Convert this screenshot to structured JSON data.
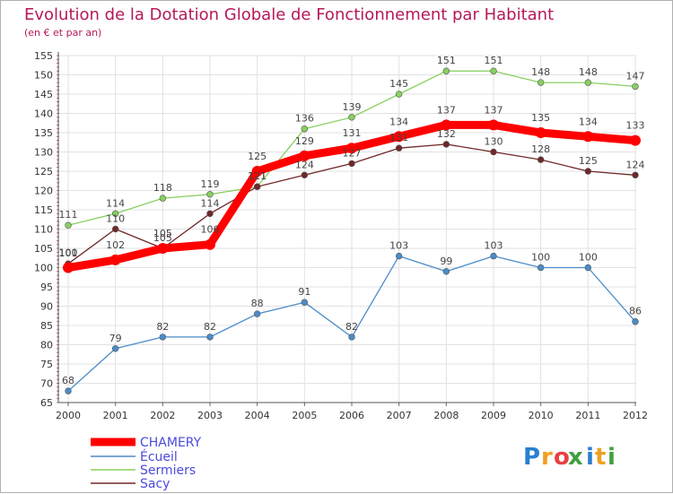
{
  "chart_data": {
    "type": "line",
    "title": "Evolution de la Dotation Globale de Fonctionnement par Habitant",
    "subtitle": "(en € et par an)",
    "xlabel": "",
    "ylabel": "",
    "x": [
      "2000",
      "2001",
      "2002",
      "2003",
      "2004",
      "2005",
      "2006",
      "2007",
      "2008",
      "2009",
      "2010",
      "2011",
      "2012"
    ],
    "ylim": [
      65,
      155
    ],
    "yticks": [
      65,
      70,
      75,
      80,
      85,
      90,
      95,
      100,
      105,
      110,
      115,
      120,
      125,
      130,
      135,
      140,
      145,
      150,
      155
    ],
    "grid": true,
    "legend_position": "bottom-left",
    "series": [
      {
        "name": "CHAMERY",
        "color": "#ff0000",
        "values": [
          100,
          102,
          105,
          106,
          125,
          129,
          131,
          134,
          137,
          137,
          135,
          134,
          133
        ]
      },
      {
        "name": "Écueil",
        "color": "#4a8cc8",
        "values": [
          68,
          79,
          82,
          82,
          88,
          91,
          82,
          103,
          99,
          103,
          100,
          100,
          86
        ]
      },
      {
        "name": "Sermiers",
        "color": "#88d060",
        "values": [
          111,
          114,
          118,
          119,
          121,
          136,
          139,
          145,
          151,
          151,
          148,
          148,
          147
        ]
      },
      {
        "name": "Sacy",
        "color": "#702828",
        "values": [
          101,
          110,
          105,
          114,
          121,
          124,
          127,
          131,
          132,
          130,
          128,
          125,
          124
        ]
      }
    ]
  },
  "logo": {
    "text": "Proxiti",
    "letters": [
      "P",
      "r",
      "o",
      "x",
      "i",
      "t",
      "i"
    ],
    "colors": [
      "#2a7fd0",
      "#f0a020",
      "#e84040",
      "#40a040",
      "#2a7fd0",
      "#f0a020",
      "#40a040"
    ]
  }
}
